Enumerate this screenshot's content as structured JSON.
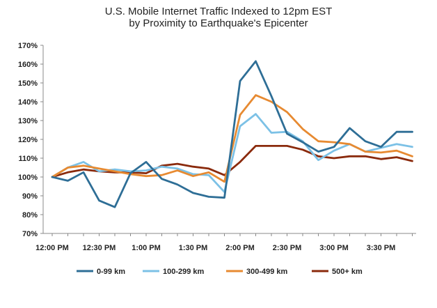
{
  "chart_data": {
    "type": "line",
    "title": "U.S. Mobile Internet Traffic Indexed to 12pm EST",
    "subtitle": "by Proximity to Earthquake's Epicenter",
    "xlabel": "",
    "ylabel": "",
    "ylim": [
      70,
      170
    ],
    "y_ticks": [
      "70%",
      "80%",
      "90%",
      "100%",
      "110%",
      "120%",
      "130%",
      "140%",
      "150%",
      "160%",
      "170%"
    ],
    "x_ticks": [
      "12:00 PM",
      "12:30 PM",
      "1:00 PM",
      "1:30 PM",
      "2:00 PM",
      "2:30 PM",
      "3:00 PM",
      "3:30 PM"
    ],
    "x_tick_index": [
      0,
      3,
      6,
      9,
      12,
      15,
      18,
      21
    ],
    "grid": false,
    "legend_position": "bottom",
    "series": [
      {
        "name": "0-99 km",
        "color": "#2e6e96",
        "values": [
          100,
          98,
          102.5,
          87.5,
          84,
          102,
          108,
          99,
          96,
          91.5,
          89.5,
          89,
          151,
          161.5,
          143,
          123,
          118.5,
          113.5,
          116,
          126,
          119,
          116,
          124,
          124
        ]
      },
      {
        "name": "100-299 km",
        "color": "#7cc1e6",
        "values": [
          100,
          105,
          108,
          103,
          104,
          103,
          103.5,
          105.5,
          104.5,
          101.5,
          101,
          92,
          127,
          133.5,
          123.5,
          124,
          119,
          109,
          114,
          117.5,
          113.5,
          115.5,
          117.5,
          116
        ]
      },
      {
        "name": "300-499 km",
        "color": "#e78a31",
        "values": [
          100,
          105,
          106,
          104.5,
          103,
          101.5,
          100.5,
          101,
          103.5,
          100.5,
          102.5,
          97.5,
          133,
          143.5,
          140,
          134.5,
          125.5,
          119,
          118.5,
          117.5,
          113.5,
          113,
          114,
          111
        ]
      },
      {
        "name": "500+ km",
        "color": "#8a2a0c",
        "values": [
          100,
          102.5,
          104,
          103,
          102.5,
          102.5,
          102,
          106,
          107,
          105.5,
          104.5,
          101,
          108,
          116.5,
          116.5,
          116.5,
          114.5,
          111,
          110,
          111,
          111,
          109.5,
          110.5,
          108.5
        ]
      }
    ]
  }
}
